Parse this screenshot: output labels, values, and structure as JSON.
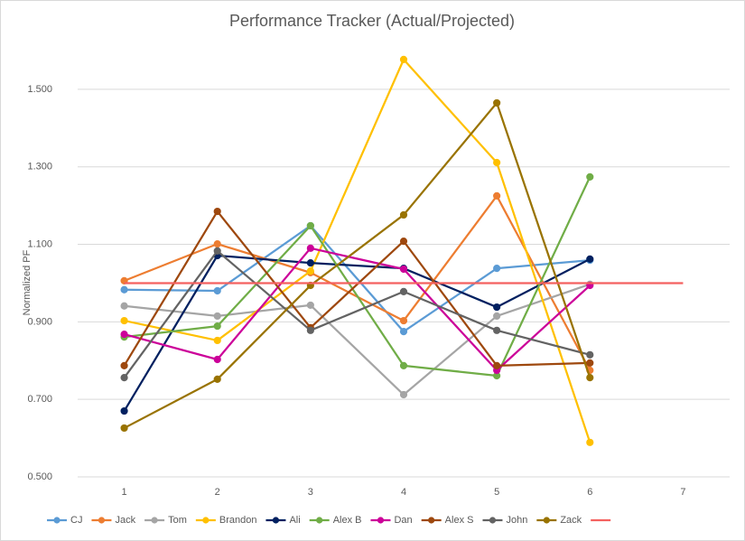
{
  "chart_data": {
    "type": "line",
    "title": "Performance Tracker (Actual/Projected)",
    "y_label": "Normalized PF",
    "categories": [
      "1",
      "2",
      "3",
      "4",
      "5",
      "6",
      "7"
    ],
    "ylim": [
      0.5,
      1.6
    ],
    "yticks": [
      {
        "value": 0.5,
        "label": "0.500"
      },
      {
        "value": 0.7,
        "label": "0.700"
      },
      {
        "value": 0.9,
        "label": "0.900"
      },
      {
        "value": 1.1,
        "label": "1.100"
      },
      {
        "value": 1.3,
        "label": "1.300"
      },
      {
        "value": 1.5,
        "label": "1.500"
      }
    ],
    "grid": true,
    "legend": "bottom",
    "series": [
      {
        "name": "CJ",
        "color": "#5b9bd5",
        "values": [
          0.983,
          0.98,
          1.148,
          0.875,
          1.038,
          1.059,
          null
        ]
      },
      {
        "name": "Jack",
        "color": "#ed7d31",
        "values": [
          1.006,
          1.101,
          1.027,
          0.903,
          1.225,
          0.775,
          null
        ]
      },
      {
        "name": "Tom",
        "color": "#a5a5a5",
        "values": [
          0.941,
          0.915,
          0.943,
          0.712,
          0.915,
          0.997,
          null
        ]
      },
      {
        "name": "Brandon",
        "color": "#ffc000",
        "values": [
          0.903,
          0.852,
          1.031,
          1.577,
          1.311,
          0.589,
          null
        ]
      },
      {
        "name": "Ali",
        "color": "#002060",
        "values": [
          0.67,
          1.071,
          1.052,
          1.038,
          0.938,
          1.062,
          null
        ]
      },
      {
        "name": "Alex B",
        "color": "#70ad47",
        "values": [
          0.861,
          0.889,
          1.148,
          0.787,
          0.761,
          1.274,
          null
        ]
      },
      {
        "name": "Dan",
        "color": "#cc0099",
        "values": [
          0.868,
          0.803,
          1.09,
          1.036,
          0.775,
          0.994,
          null
        ]
      },
      {
        "name": "Alex S",
        "color": "#9e480e",
        "values": [
          0.787,
          1.185,
          0.885,
          1.108,
          0.787,
          0.794,
          null
        ]
      },
      {
        "name": "John",
        "color": "#636363",
        "values": [
          0.756,
          1.083,
          0.878,
          0.978,
          0.878,
          0.815,
          null
        ]
      },
      {
        "name": "Zack",
        "color": "#997300",
        "values": [
          0.626,
          0.752,
          0.994,
          1.176,
          1.465,
          0.756,
          null
        ]
      },
      {
        "color": "#f4615f",
        "values": [
          1,
          1,
          1,
          1,
          1,
          1,
          1
        ],
        "markers": false
      }
    ]
  }
}
